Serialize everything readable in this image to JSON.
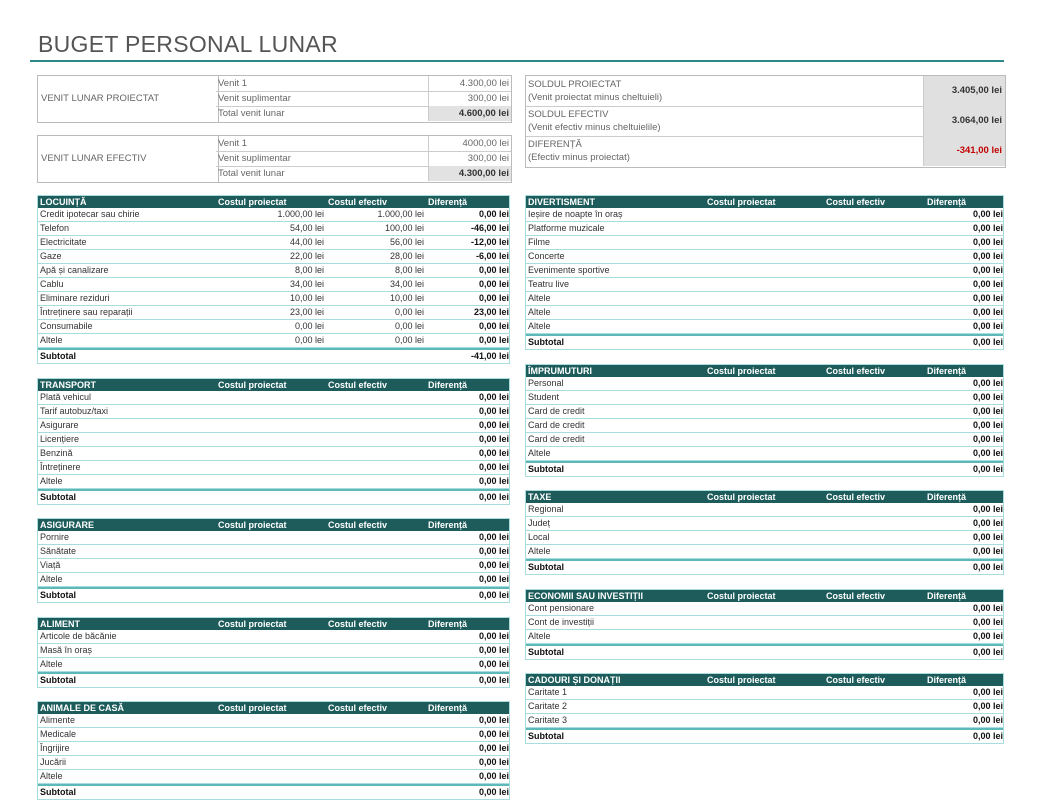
{
  "title": "BUGET PERSONAL LUNAR",
  "colors": {
    "accent": "#2e8888",
    "header_bg": "#1e5c5c",
    "row_border": "#a9dcdc",
    "negative": "#c00000"
  },
  "income_projected": {
    "label": "VENIT LUNAR PROIECTAT",
    "rows": [
      {
        "name": "Venit 1",
        "value": "4.300,00 lei"
      },
      {
        "name": "Venit suplimentar",
        "value": "300,00 lei"
      },
      {
        "name": "Total venit lunar",
        "value": "4.600,00 lei"
      }
    ]
  },
  "income_actual": {
    "label": "VENIT LUNAR EFECTIV",
    "rows": [
      {
        "name": "Venit 1",
        "value": "4000,00 lei"
      },
      {
        "name": "Venit suplimentar",
        "value": "300,00 lei"
      },
      {
        "name": "Total venit lunar",
        "value": "4.300,00 lei"
      }
    ]
  },
  "summary": [
    {
      "title": "SOLDUL PROIECTAT",
      "subtitle": "(Venit proiectat minus cheltuieli)",
      "value": "3.405,00 lei"
    },
    {
      "title": "SOLDUL EFECTIV",
      "subtitle": "(Venit efectiv minus cheltuielile)",
      "value": "3.064,00 lei"
    },
    {
      "title": "DIFERENȚĂ",
      "subtitle": "(Efectiv minus proiectat)",
      "value": "-341,00 lei"
    }
  ],
  "columns": {
    "projected": "Costul proiectat",
    "actual": "Costul efectiv",
    "diff": "Diferență"
  },
  "subtotal_label": "Subtotal",
  "tables": [
    {
      "title": "LOCUINȚĂ",
      "rows": [
        [
          "Credit ipotecar sau chirie",
          "1.000,00 lei",
          "1.000,00 lei",
          "0,00 lei"
        ],
        [
          "Telefon",
          "54,00 lei",
          "100,00 lei",
          "-46,00 lei"
        ],
        [
          "Electricitate",
          "44,00 lei",
          "56,00 lei",
          "-12,00 lei"
        ],
        [
          "Gaze",
          "22,00 lei",
          "28,00 lei",
          "-6,00 lei"
        ],
        [
          "Apă și canalizare",
          "8,00 lei",
          "8,00 lei",
          "0,00 lei"
        ],
        [
          "Cablu",
          "34,00 lei",
          "34,00 lei",
          "0,00 lei"
        ],
        [
          "Eliminare reziduri",
          "10,00 lei",
          "10,00 lei",
          "0,00 lei"
        ],
        [
          "Întreținere sau reparații",
          "23,00 lei",
          "0,00 lei",
          "23,00 lei"
        ],
        [
          "Consumabile",
          "0,00 lei",
          "0,00 lei",
          "0,00 lei"
        ],
        [
          "Altele",
          "0,00 lei",
          "0,00 lei",
          "0,00 lei"
        ]
      ],
      "subtotal": "-41,00 lei"
    },
    {
      "title": "TRANSPORT",
      "rows": [
        [
          "Plată vehicul",
          "",
          "",
          "0,00 lei"
        ],
        [
          "Tarif autobuz/taxi",
          "",
          "",
          "0,00 lei"
        ],
        [
          "Asigurare",
          "",
          "",
          "0,00 lei"
        ],
        [
          "Licențiere",
          "",
          "",
          "0,00 lei"
        ],
        [
          "Benzină",
          "",
          "",
          "0,00 lei"
        ],
        [
          "Întreținere",
          "",
          "",
          "0,00 lei"
        ],
        [
          "Altele",
          "",
          "",
          "0,00 lei"
        ]
      ],
      "subtotal": "0,00 lei"
    },
    {
      "title": "ASIGURARE",
      "rows": [
        [
          "Pornire",
          "",
          "",
          "0,00 lei"
        ],
        [
          "Sănătate",
          "",
          "",
          "0,00 lei"
        ],
        [
          "Viață",
          "",
          "",
          "0,00 lei"
        ],
        [
          "Altele",
          "",
          "",
          "0,00 lei"
        ]
      ],
      "subtotal": "0,00 lei"
    },
    {
      "title": "ALIMENT",
      "rows": [
        [
          "Articole de băcănie",
          "",
          "",
          "0,00 lei"
        ],
        [
          "Masă în oraș",
          "",
          "",
          "0,00 lei"
        ],
        [
          "Altele",
          "",
          "",
          "0,00 lei"
        ]
      ],
      "subtotal": "0,00 lei"
    },
    {
      "title": "ANIMALE DE CASĂ",
      "rows": [
        [
          "Alimente",
          "",
          "",
          "0,00 lei"
        ],
        [
          "Medicale",
          "",
          "",
          "0,00 lei"
        ],
        [
          "Îngrijire",
          "",
          "",
          "0,00 lei"
        ],
        [
          "Jucării",
          "",
          "",
          "0,00 lei"
        ],
        [
          "Altele",
          "",
          "",
          "0,00 lei"
        ]
      ],
      "subtotal": "0,00 lei"
    },
    {
      "title": "DIVERTISMENT",
      "rows": [
        [
          "Ieșire de noapte în oraș",
          "",
          "",
          "0,00 lei"
        ],
        [
          "Platforme muzicale",
          "",
          "",
          "0,00 lei"
        ],
        [
          "Filme",
          "",
          "",
          "0,00 lei"
        ],
        [
          "Concerte",
          "",
          "",
          "0,00 lei"
        ],
        [
          "Evenimente sportive",
          "",
          "",
          "0,00 lei"
        ],
        [
          "Teatru live",
          "",
          "",
          "0,00 lei"
        ],
        [
          "Altele",
          "",
          "",
          "0,00 lei"
        ],
        [
          "Altele",
          "",
          "",
          "0,00 lei"
        ],
        [
          "Altele",
          "",
          "",
          "0,00 lei"
        ]
      ],
      "subtotal": "0,00 lei"
    },
    {
      "title": "ÎMPRUMUTURI",
      "rows": [
        [
          "Personal",
          "",
          "",
          "0,00 lei"
        ],
        [
          "Student",
          "",
          "",
          "0,00 lei"
        ],
        [
          "Card de credit",
          "",
          "",
          "0,00 lei"
        ],
        [
          "Card de credit",
          "",
          "",
          "0,00 lei"
        ],
        [
          "Card de credit",
          "",
          "",
          "0,00 lei"
        ],
        [
          "Altele",
          "",
          "",
          "0,00 lei"
        ]
      ],
      "subtotal": "0,00 lei"
    },
    {
      "title": "TAXE",
      "rows": [
        [
          "Regional",
          "",
          "",
          "0,00 lei"
        ],
        [
          "Județ",
          "",
          "",
          "0,00 lei"
        ],
        [
          "Local",
          "",
          "",
          "0,00 lei"
        ],
        [
          "Altele",
          "",
          "",
          "0,00 lei"
        ]
      ],
      "subtotal": "0,00 lei"
    },
    {
      "title": "ECONOMII SAU INVESTIȚII",
      "rows": [
        [
          "Cont pensionare",
          "",
          "",
          "0,00 lei"
        ],
        [
          "Cont de investiții",
          "",
          "",
          "0,00 lei"
        ],
        [
          "Altele",
          "",
          "",
          "0,00 lei"
        ]
      ],
      "subtotal": "0,00 lei"
    },
    {
      "title": "CADOURI ȘI DONAȚII",
      "rows": [
        [
          "Caritate 1",
          "",
          "",
          "0,00 lei"
        ],
        [
          "Caritate 2",
          "",
          "",
          "0,00 lei"
        ],
        [
          "Caritate 3",
          "",
          "",
          "0,00 lei"
        ]
      ],
      "subtotal": "0,00 lei"
    }
  ]
}
